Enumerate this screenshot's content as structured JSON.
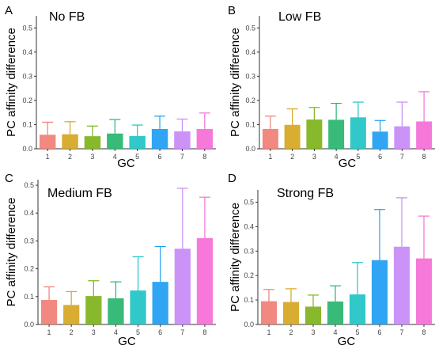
{
  "figure": {
    "letters": [
      "A",
      "B",
      "C",
      "D"
    ]
  },
  "chart_data": [
    {
      "type": "bar",
      "title": "No FB",
      "xlabel": "GC",
      "ylabel": "PC affinity difference",
      "categories": [
        "1",
        "2",
        "3",
        "4",
        "5",
        "6",
        "7",
        "8"
      ],
      "values": [
        0.058,
        0.06,
        0.052,
        0.063,
        0.053,
        0.082,
        0.072,
        0.082
      ],
      "error_upper": [
        0.11,
        0.112,
        0.094,
        0.121,
        0.098,
        0.135,
        0.123,
        0.148
      ],
      "ylim": [
        0,
        0.55
      ],
      "yticks": [
        0.0,
        0.1,
        0.2,
        0.3,
        0.4,
        0.5
      ],
      "colors": [
        "#F07F75",
        "#D6A521",
        "#7EB21A",
        "#27B56E",
        "#1FC3C5",
        "#1E9DF2",
        "#C78AF7",
        "#F56ED6"
      ]
    },
    {
      "type": "bar",
      "title": "Low FB",
      "xlabel": "GC",
      "ylabel": "PC affinity difference",
      "categories": [
        "1",
        "2",
        "3",
        "4",
        "5",
        "6",
        "7",
        "8"
      ],
      "values": [
        0.082,
        0.099,
        0.121,
        0.12,
        0.13,
        0.071,
        0.093,
        0.113
      ],
      "error_upper": [
        0.135,
        0.165,
        0.171,
        0.188,
        0.193,
        0.117,
        0.193,
        0.236
      ],
      "ylim": [
        0,
        0.55
      ],
      "yticks": [
        0.0,
        0.1,
        0.2,
        0.3,
        0.4,
        0.5
      ],
      "colors": [
        "#F07F75",
        "#D6A521",
        "#7EB21A",
        "#27B56E",
        "#1FC3C5",
        "#1E9DF2",
        "#C78AF7",
        "#F56ED6"
      ]
    },
    {
      "type": "bar",
      "title": "Medium FB",
      "xlabel": "GC",
      "ylabel": "PC affinity difference",
      "categories": [
        "1",
        "2",
        "3",
        "4",
        "5",
        "6",
        "7",
        "8"
      ],
      "values": [
        0.088,
        0.07,
        0.102,
        0.094,
        0.122,
        0.153,
        0.272,
        0.31
      ],
      "error_upper": [
        0.135,
        0.118,
        0.157,
        0.153,
        0.243,
        0.28,
        0.489,
        0.457
      ],
      "ylim": [
        0,
        0.52
      ],
      "yticks": [
        0.0,
        0.1,
        0.2,
        0.3,
        0.4,
        0.5
      ],
      "colors": [
        "#F07F75",
        "#D6A521",
        "#7EB21A",
        "#27B56E",
        "#1FC3C5",
        "#1E9DF2",
        "#C78AF7",
        "#F56ED6"
      ]
    },
    {
      "type": "bar",
      "title": "Strong FB",
      "xlabel": "GC",
      "ylabel": "PC affinity difference",
      "categories": [
        "1",
        "2",
        "3",
        "4",
        "5",
        "6",
        "7",
        "8"
      ],
      "values": [
        0.095,
        0.092,
        0.073,
        0.094,
        0.123,
        0.263,
        0.318,
        0.27
      ],
      "error_upper": [
        0.143,
        0.146,
        0.12,
        0.158,
        0.253,
        0.47,
        0.518,
        0.443
      ],
      "ylim": [
        0,
        0.55
      ],
      "yticks": [
        0.0,
        0.1,
        0.2,
        0.3,
        0.4,
        0.5
      ],
      "colors": [
        "#F07F75",
        "#D6A521",
        "#7EB21A",
        "#27B56E",
        "#1FC3C5",
        "#1E9DF2",
        "#C78AF7",
        "#F56ED6"
      ]
    }
  ]
}
